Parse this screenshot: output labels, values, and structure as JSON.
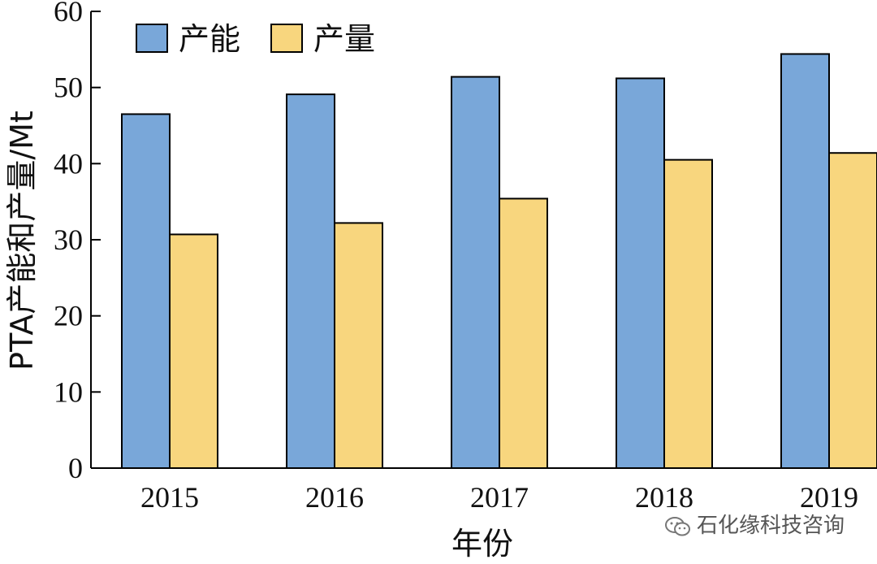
{
  "chart_data": {
    "type": "bar",
    "categories": [
      "2015",
      "2016",
      "2017",
      "2018",
      "2019"
    ],
    "series": [
      {
        "name": "产能",
        "values": [
          46.5,
          49.1,
          51.4,
          51.2,
          54.4
        ],
        "color": "#79a7d9"
      },
      {
        "name": "产量",
        "values": [
          30.7,
          32.2,
          35.4,
          40.5,
          41.4
        ],
        "color": "#f8d67e"
      }
    ],
    "xlabel": "年份",
    "ylabel": "PTA产能和产量/Mt",
    "ylim": [
      0,
      60
    ],
    "yticks": [
      0,
      10,
      20,
      30,
      40,
      50,
      60
    ],
    "grid": false,
    "legend": "top-left"
  },
  "watermark": {
    "icon": "wechat-icon",
    "text": "石化缘科技咨询"
  }
}
